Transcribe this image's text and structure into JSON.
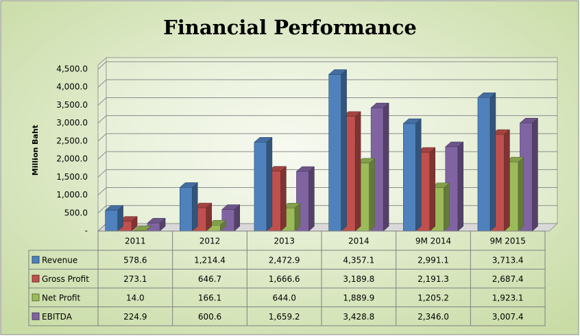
{
  "chart_data": {
    "type": "bar3d",
    "title": "Financial Performance",
    "y_label": "Million Baht",
    "categories": [
      "2011",
      "2012",
      "2013",
      "2014",
      "9M 2014",
      "9M 2015"
    ],
    "series": [
      {
        "name": "Revenue",
        "color": "#4f81bd",
        "values": [
          578.6,
          1214.4,
          2472.9,
          4357.1,
          2991.1,
          3713.4
        ],
        "value_labels": [
          "578.6",
          "1,214.4",
          "2,472.9",
          "4,357.1",
          "2,991.1",
          "3,713.4"
        ]
      },
      {
        "name": "Gross Profit",
        "color": "#c0504d",
        "values": [
          273.1,
          646.7,
          1666.6,
          3189.8,
          2191.3,
          2687.4
        ],
        "value_labels": [
          "273.1",
          "646.7",
          "1,666.6",
          "3,189.8",
          "2,191.3",
          "2,687.4"
        ]
      },
      {
        "name": "Net Profit",
        "color": "#9bbb59",
        "values": [
          14.0,
          166.1,
          644.0,
          1889.9,
          1205.2,
          1923.1
        ],
        "value_labels": [
          "14.0",
          "166.1",
          "644.0",
          "1,889.9",
          "1,205.2",
          "1,923.1"
        ]
      },
      {
        "name": "EBITDA",
        "color": "#8064a2",
        "values": [
          224.9,
          600.6,
          1659.2,
          3428.8,
          2346.0,
          3007.4
        ],
        "value_labels": [
          "224.9",
          "600.6",
          "1,659.2",
          "3,428.8",
          "2,346.0",
          "3,007.4"
        ]
      }
    ],
    "ylim": [
      0,
      4500
    ],
    "yticks": [
      {
        "value": 0,
        "label": "-"
      },
      {
        "value": 500,
        "label": "500.0"
      },
      {
        "value": 1000,
        "label": "1,000.0"
      },
      {
        "value": 1500,
        "label": "1,500.0"
      },
      {
        "value": 2000,
        "label": "2,000.0"
      },
      {
        "value": 2500,
        "label": "2,500.0"
      },
      {
        "value": 3000,
        "label": "3,000.0"
      },
      {
        "value": 3500,
        "label": "3,500.0"
      },
      {
        "value": 4000,
        "label": "4,000.0"
      },
      {
        "value": 4500,
        "label": "4,500.0"
      }
    ],
    "grid": true
  }
}
